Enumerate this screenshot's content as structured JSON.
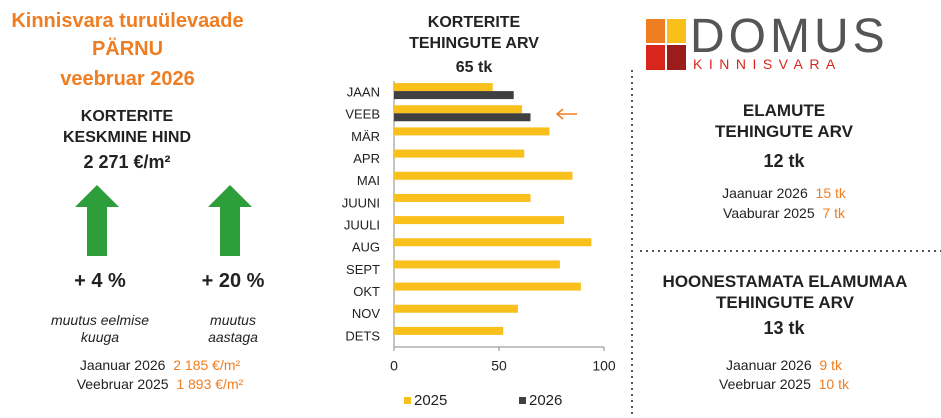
{
  "header": {
    "title": "Kinnisvara turuülevaade",
    "city": "PÄRNU",
    "period": "veebruar 2026"
  },
  "price": {
    "title": "KORTERITE KESKMINE HIND",
    "value": "2 271 €/m²",
    "changes": [
      {
        "value": "+ 4 %",
        "label": "muutus eelmise kuuga"
      },
      {
        "value": "+ 20 %",
        "label": "muutus aastaga"
      }
    ],
    "comparisons": [
      {
        "label": "Jaanuar 2026",
        "value": "2 185 €/m²"
      },
      {
        "label": "Veebruar 2025",
        "value": "1 893 €/m²"
      }
    ]
  },
  "chart_data": {
    "type": "hbar",
    "title": "KORTERITE TEHINGUTE ARV",
    "subtitle": "65 tk",
    "categories": [
      "JAAN",
      "VEEB",
      "MÄR",
      "APR",
      "MAI",
      "JUUNI",
      "JUULI",
      "AUG",
      "SEPT",
      "OKT",
      "NOV",
      "DETS"
    ],
    "series": [
      {
        "name": "2025",
        "color": "#f9c01c",
        "values": [
          47,
          61,
          74,
          62,
          85,
          65,
          81,
          94,
          79,
          89,
          59,
          52
        ]
      },
      {
        "name": "2026",
        "color": "#404040",
        "values": [
          57,
          65,
          null,
          null,
          null,
          null,
          null,
          null,
          null,
          null,
          null,
          null
        ]
      }
    ],
    "xlim": [
      0,
      100
    ],
    "xticks": [
      0,
      50,
      100
    ],
    "grid": false
  },
  "logo": {
    "name": "DOMUS",
    "sub": "KINNISVARA"
  },
  "sections": [
    {
      "title": "ELAMUTE TEHINGUTE ARV",
      "value": "12 tk",
      "comparisons": [
        {
          "label": "Jaanuar 2026",
          "value": "15 tk"
        },
        {
          "label": "Vaaburar 2025",
          "value": "7 tk"
        }
      ]
    },
    {
      "title": "HOONESTAMATA ELAMUMAA TEHINGUTE ARV",
      "value": "13 tk",
      "comparisons": [
        {
          "label": "Jaanuar 2026",
          "value": "9 tk"
        },
        {
          "label": "Veebruar 2025",
          "value": "10 tk"
        }
      ]
    }
  ]
}
